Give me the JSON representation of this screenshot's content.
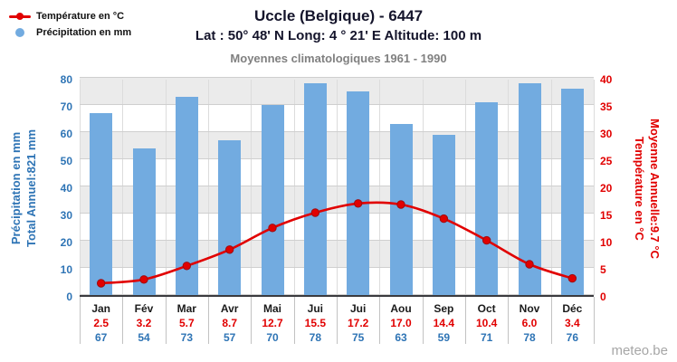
{
  "header": {
    "title": "Uccle (Belgique) - 6447",
    "coords": "Lat : 50° 48' N Long: 4 ° 21' E Altitude: 100 m",
    "period": "Moyennes climatologiques 1961 - 1990"
  },
  "legend": {
    "temperature": "Température en °C",
    "precipitation": "Précipitation en mm"
  },
  "watermark": "meteo.be",
  "colors": {
    "bar_blue": "#72ABE0",
    "line_red": "#E10000",
    "text_blue": "#2E74B5",
    "text_dark": "#14142B",
    "text_grey": "#808080",
    "grid": "#CFCFCF",
    "band_grey": "#EBEBEB"
  },
  "chart_data": {
    "type": "bar+line climate chart",
    "title": "Uccle (Belgique) - 6447",
    "subtitle": "Moyennes climatologiques 1961 - 1990",
    "legend_position": "top-left",
    "grid": true,
    "categories": [
      "Jan",
      "Fév",
      "Mar",
      "Avr",
      "Mai",
      "Jui",
      "Jui",
      "Aou",
      "Sep",
      "Oct",
      "Nov",
      "Déc"
    ],
    "series": [
      {
        "name": "Précipitation en mm",
        "type": "bar",
        "axis": "left",
        "values": [
          67,
          54,
          73,
          57,
          70,
          78,
          75,
          63,
          59,
          71,
          78,
          76
        ],
        "labels": [
          "67",
          "54",
          "73",
          "57",
          "70",
          "78",
          "75",
          "63",
          "59",
          "71",
          "78",
          "76"
        ]
      },
      {
        "name": "Température en °C",
        "type": "line",
        "axis": "right",
        "values": [
          2.5,
          3.2,
          5.7,
          8.7,
          12.7,
          15.5,
          17.2,
          17.0,
          14.4,
          10.4,
          6.0,
          3.4
        ],
        "labels": [
          "2.5",
          "3.2",
          "5.7",
          "8.7",
          "12.7",
          "15.5",
          "17.2",
          "17.0",
          "14.4",
          "10.4",
          "6.0",
          "3.4"
        ]
      }
    ],
    "left_axis": {
      "title": "Précipitation en mm",
      "subtitle": "Total Annuel:821 mm",
      "min": 0,
      "max": 80,
      "step": 10
    },
    "right_axis": {
      "title": "Température en °C",
      "subtitle": "Moyenne Annuelle:9.7 °C",
      "min": 0,
      "max": 40,
      "step": 5
    }
  }
}
